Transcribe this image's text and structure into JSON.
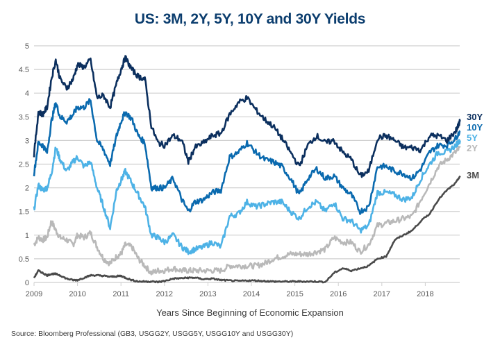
{
  "chart_data": {
    "type": "line",
    "title": "US: 3M, 2Y, 5Y, 10Y and 30Y Yields",
    "xlabel": "Years Since Beginning of Economic Expansion",
    "ylabel": "",
    "source": "Source: Bloomberg Professional (GB3, USGG2Y, USGG5Y, USGG10Y and USGG30Y)",
    "xlim": [
      2009,
      2018.8
    ],
    "ylim": [
      0,
      5
    ],
    "grid": true,
    "x_ticks": [
      "2009",
      "2010",
      "2011",
      "2012",
      "2013",
      "2014",
      "2015",
      "2016",
      "2017",
      "2018"
    ],
    "y_ticks": [
      "0",
      "0.5",
      "1",
      "1.5",
      "2",
      "2.5",
      "3",
      "3.5",
      "4",
      "4.5",
      "5"
    ],
    "legend_position": "right-end-labels",
    "x": [
      2009.0,
      2009.1,
      2009.2,
      2009.3,
      2009.4,
      2009.5,
      2009.6,
      2009.75,
      2009.9,
      2010.0,
      2010.15,
      2010.3,
      2010.45,
      2010.6,
      2010.75,
      2010.9,
      2011.0,
      2011.1,
      2011.25,
      2011.4,
      2011.55,
      2011.7,
      2011.85,
      2012.0,
      2012.2,
      2012.4,
      2012.55,
      2012.7,
      2012.9,
      2013.1,
      2013.3,
      2013.5,
      2013.7,
      2013.9,
      2014.1,
      2014.3,
      2014.5,
      2014.7,
      2014.9,
      2015.1,
      2015.3,
      2015.5,
      2015.7,
      2015.9,
      2016.1,
      2016.3,
      2016.5,
      2016.7,
      2016.9,
      2017.1,
      2017.3,
      2017.5,
      2017.7,
      2017.9,
      2018.1,
      2018.3,
      2018.5,
      2018.7,
      2018.8
    ],
    "series": [
      {
        "name": "30Y",
        "color": "#0b2f5e",
        "values": [
          2.7,
          3.6,
          3.55,
          3.7,
          4.3,
          4.7,
          4.3,
          4.1,
          4.3,
          4.6,
          4.55,
          4.7,
          3.9,
          3.95,
          3.7,
          4.2,
          4.5,
          4.75,
          4.5,
          4.35,
          4.3,
          3.3,
          2.95,
          2.9,
          3.1,
          3.0,
          2.55,
          2.85,
          2.95,
          3.1,
          3.15,
          3.55,
          3.8,
          3.9,
          3.65,
          3.45,
          3.3,
          3.05,
          2.75,
          2.45,
          2.9,
          3.1,
          2.95,
          3.0,
          2.75,
          2.6,
          2.25,
          2.35,
          3.05,
          3.1,
          3.0,
          2.85,
          2.85,
          2.8,
          3.1,
          3.1,
          3.0,
          3.2,
          3.4
        ]
      },
      {
        "name": "10Y",
        "color": "#0a6aaf",
        "values": [
          2.3,
          2.95,
          2.9,
          2.75,
          3.4,
          3.8,
          3.5,
          3.4,
          3.55,
          3.7,
          3.7,
          3.85,
          3.0,
          2.8,
          2.5,
          3.1,
          3.4,
          3.6,
          3.45,
          3.1,
          2.95,
          2.0,
          2.0,
          2.0,
          2.2,
          1.75,
          1.5,
          1.7,
          1.75,
          1.9,
          1.95,
          2.65,
          2.75,
          2.95,
          2.75,
          2.6,
          2.55,
          2.45,
          2.2,
          1.85,
          2.2,
          2.4,
          2.2,
          2.25,
          2.0,
          1.85,
          1.5,
          1.6,
          2.45,
          2.45,
          2.35,
          2.3,
          2.2,
          2.4,
          2.75,
          2.9,
          2.9,
          3.05,
          3.2
        ]
      },
      {
        "name": "5Y",
        "color": "#4db2e6",
        "values": [
          1.55,
          2.05,
          1.95,
          2.0,
          2.3,
          2.85,
          2.6,
          2.35,
          2.55,
          2.65,
          2.45,
          2.55,
          2.0,
          1.6,
          1.15,
          1.95,
          2.15,
          2.35,
          2.1,
          1.85,
          1.6,
          1.0,
          0.95,
          0.85,
          1.0,
          0.75,
          0.65,
          0.7,
          0.75,
          0.85,
          0.75,
          1.4,
          1.45,
          1.7,
          1.6,
          1.65,
          1.7,
          1.7,
          1.5,
          1.35,
          1.6,
          1.7,
          1.5,
          1.7,
          1.35,
          1.3,
          1.1,
          1.2,
          1.9,
          1.9,
          1.85,
          1.75,
          1.8,
          2.2,
          2.5,
          2.75,
          2.75,
          2.9,
          3.0
        ]
      },
      {
        "name": "2Y",
        "color": "#b9b9b9",
        "values": [
          0.8,
          0.95,
          0.9,
          0.95,
          1.3,
          1.1,
          0.95,
          0.9,
          0.8,
          1.0,
          0.95,
          1.05,
          0.75,
          0.5,
          0.4,
          0.55,
          0.6,
          0.8,
          0.75,
          0.5,
          0.35,
          0.2,
          0.25,
          0.25,
          0.3,
          0.25,
          0.25,
          0.25,
          0.25,
          0.25,
          0.25,
          0.35,
          0.35,
          0.35,
          0.35,
          0.4,
          0.5,
          0.55,
          0.6,
          0.6,
          0.6,
          0.65,
          0.7,
          0.95,
          0.85,
          0.85,
          0.65,
          0.8,
          1.2,
          1.25,
          1.3,
          1.35,
          1.4,
          1.75,
          2.1,
          2.45,
          2.6,
          2.75,
          2.85
        ]
      },
      {
        "name": "3M",
        "color": "#4a4a4a",
        "values": [
          0.1,
          0.25,
          0.2,
          0.15,
          0.18,
          0.18,
          0.15,
          0.08,
          0.05,
          0.05,
          0.1,
          0.15,
          0.15,
          0.14,
          0.12,
          0.13,
          0.14,
          0.1,
          0.05,
          0.02,
          0.02,
          0.02,
          0.01,
          0.03,
          0.08,
          0.09,
          0.1,
          0.1,
          0.07,
          0.08,
          0.05,
          0.04,
          0.03,
          0.04,
          0.04,
          0.03,
          0.02,
          0.02,
          0.02,
          0.02,
          0.02,
          0.02,
          0.01,
          0.2,
          0.3,
          0.25,
          0.3,
          0.35,
          0.5,
          0.55,
          0.9,
          1.0,
          1.1,
          1.3,
          1.45,
          1.75,
          1.95,
          2.1,
          2.25
        ]
      }
    ]
  }
}
